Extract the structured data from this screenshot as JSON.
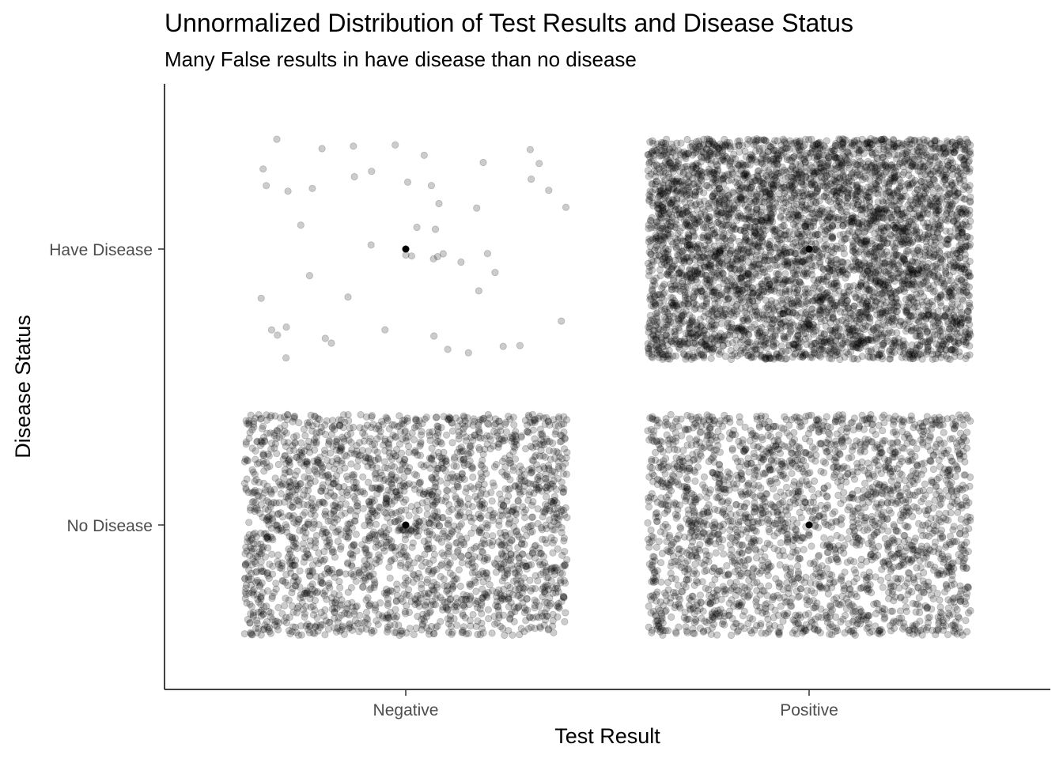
{
  "chart_data": {
    "type": "scatter",
    "title": "Unnormalized Distribution of Test Results and Disease Status",
    "subtitle": "Many False results in have disease than no disease",
    "xlabel": "Test Result",
    "ylabel": "Disease Status",
    "x_categories": [
      "Negative",
      "Positive"
    ],
    "y_categories": [
      "No Disease",
      "Have Disease"
    ],
    "jitter": 0.4,
    "point_alpha": 0.2,
    "point_color": "#000000",
    "grid": false,
    "legend": "none",
    "cells": [
      {
        "x": "Negative",
        "y": "Have Disease",
        "count": 50
      },
      {
        "x": "Positive",
        "y": "Have Disease",
        "count": 4950
      },
      {
        "x": "Negative",
        "y": "No Disease",
        "count": 2500
      },
      {
        "x": "Positive",
        "y": "No Disease",
        "count": 2500
      }
    ],
    "center_points": [
      {
        "x": "Negative",
        "y": "Have Disease"
      },
      {
        "x": "Positive",
        "y": "Have Disease"
      },
      {
        "x": "Negative",
        "y": "No Disease"
      },
      {
        "x": "Positive",
        "y": "No Disease"
      }
    ]
  }
}
